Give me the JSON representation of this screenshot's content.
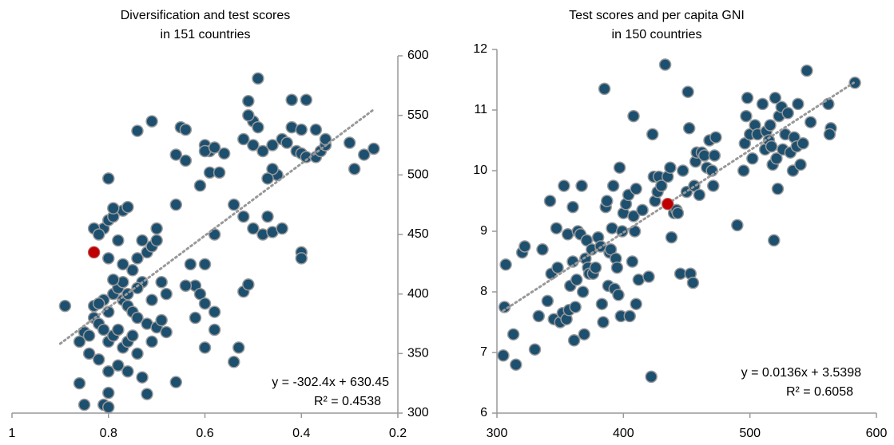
{
  "chart_data": [
    {
      "type": "scatter",
      "title": [
        "Diversification and test scores",
        "in 151 countries"
      ],
      "xlim": [
        1,
        0.2
      ],
      "xticks": [
        1,
        0.8,
        0.6,
        0.4,
        0.2
      ],
      "ylim": [
        300,
        600
      ],
      "yticks": [
        300,
        350,
        400,
        450,
        500,
        550,
        600
      ],
      "y_axis_side": "right",
      "series": [
        {
          "color": "#1d4f6f",
          "x": [
            0.89,
            0.85,
            0.84,
            0.83,
            0.82,
            0.81,
            0.8,
            0.79,
            0.78,
            0.77,
            0.76,
            0.75,
            0.74,
            0.82,
            0.8,
            0.78,
            0.76,
            0.73,
            0.86,
            0.85,
            0.81,
            0.8,
            0.8,
            0.72,
            0.66,
            0.83,
            0.81,
            0.79,
            0.78,
            0.77,
            0.76,
            0.75,
            0.74,
            0.72,
            0.7,
            0.69,
            0.68,
            0.71,
            0.75,
            0.77,
            0.74,
            0.72,
            0.71,
            0.73,
            0.7,
            0.69,
            0.68,
            0.78,
            0.8,
            0.81,
            0.83,
            0.82,
            0.8,
            0.79,
            0.77,
            0.79,
            0.76,
            0.8,
            0.74,
            0.71,
            0.65,
            0.66,
            0.64,
            0.64,
            0.6,
            0.59,
            0.59,
            0.57,
            0.61,
            0.58,
            0.6,
            0.63,
            0.62,
            0.64,
            0.61,
            0.6,
            0.58,
            0.62,
            0.58,
            0.6,
            0.54,
            0.53,
            0.52,
            0.51,
            0.54,
            0.52,
            0.5,
            0.48,
            0.47,
            0.46,
            0.44,
            0.45,
            0.46,
            0.47,
            0.48,
            0.5,
            0.52,
            0.5,
            0.49,
            0.51,
            0.51,
            0.49,
            0.46,
            0.44,
            0.43,
            0.42,
            0.41,
            0.4,
            0.39,
            0.37,
            0.36,
            0.35,
            0.35,
            0.37,
            0.4,
            0.42,
            0.39,
            0.4,
            0.4,
            0.3,
            0.29,
            0.27,
            0.25,
            0.6,
            0.58,
            0.56,
            0.66,
            0.7,
            0.71,
            0.73,
            0.77,
            0.79,
            0.86,
            0.84,
            0.82,
            0.8,
            0.76,
            0.74
          ],
          "y": [
            390,
            368,
            365,
            380,
            375,
            370,
            360,
            365,
            370,
            355,
            360,
            365,
            350,
            345,
            335,
            340,
            335,
            330,
            325,
            307,
            307,
            305,
            317,
            316,
            326,
            390,
            395,
            400,
            405,
            395,
            390,
            385,
            380,
            375,
            372,
            378,
            368,
            360,
            420,
            425,
            430,
            435,
            440,
            445,
            445,
            410,
            400,
            445,
            430,
            455,
            455,
            450,
            462,
            465,
            470,
            472,
            473,
            497,
            537,
            545,
            540,
            517,
            512,
            538,
            525,
            520,
            502,
            502,
            491,
            450,
            425,
            425,
            407,
            407,
            400,
            392,
            385,
            380,
            370,
            355,
            343,
            355,
            402,
            408,
            475,
            465,
            455,
            450,
            465,
            452,
            455,
            500,
            505,
            497,
            520,
            525,
            530,
            545,
            540,
            550,
            562,
            581,
            525,
            530,
            527,
            540,
            520,
            518,
            515,
            515,
            520,
            525,
            530,
            538,
            538,
            563,
            563,
            435,
            430,
            527,
            505,
            517,
            522,
            520,
            523,
            518,
            475,
            455,
            395,
            410,
            410,
            412,
            360,
            350,
            392,
            385,
            400,
            405
          ]
        },
        {
          "color": "#c00000",
          "x": [
            0.83
          ],
          "y": [
            435
          ]
        }
      ],
      "trendline": {
        "x": [
          0.9,
          0.25
        ],
        "y": [
          358.3,
          554.9
        ],
        "color": "#999999"
      },
      "annotation": [
        "y = -302.4x + 630.45",
        "R² = 0.4538"
      ]
    },
    {
      "type": "scatter",
      "title": [
        "Test scores and per capita GNI",
        "in 150 countries"
      ],
      "xlim": [
        300,
        600
      ],
      "xticks": [
        300,
        400,
        500,
        600
      ],
      "ylim": [
        6,
        12
      ],
      "yticks": [
        6,
        7,
        8,
        9,
        10,
        11,
        12
      ],
      "y_axis_side": "left",
      "series": [
        {
          "color": "#1d4f6f",
          "x": [
            305,
            307,
            306,
            313,
            315,
            320,
            322,
            330,
            333,
            336,
            340,
            342,
            343,
            345,
            347,
            348,
            350,
            352,
            353,
            355,
            356,
            357,
            358,
            360,
            360,
            361,
            362,
            363,
            364,
            366,
            367,
            368,
            369,
            370,
            371,
            372,
            373,
            375,
            376,
            378,
            380,
            382,
            383,
            384,
            385,
            386,
            387,
            388,
            389,
            390,
            391,
            392,
            393,
            394,
            395,
            396,
            397,
            398,
            399,
            400,
            402,
            404,
            405,
            407,
            408,
            408,
            409,
            410,
            410,
            412,
            415,
            420,
            422,
            423,
            424,
            425,
            427,
            428,
            430,
            433,
            435,
            437,
            438,
            440,
            442,
            443,
            445,
            447,
            450,
            451,
            452,
            453,
            455,
            456,
            457,
            458,
            460,
            462,
            464,
            466,
            468,
            470,
            471,
            472,
            473,
            490,
            495,
            496,
            497,
            498,
            500,
            502,
            504,
            506,
            510,
            512,
            513,
            515,
            516,
            517,
            518,
            519,
            520,
            521,
            522,
            523,
            525,
            526,
            528,
            530,
            532,
            534,
            535,
            537,
            538,
            540,
            542,
            545,
            548,
            562,
            564,
            563,
            583
          ],
          "y": [
            6.95,
            8.45,
            7.75,
            7.3,
            6.8,
            8.65,
            8.75,
            7.05,
            7.6,
            8.7,
            7.85,
            9.5,
            8.3,
            7.55,
            9.05,
            8.4,
            7.5,
            7.65,
            9.75,
            7.55,
            8.95,
            7.7,
            8.1,
            9.4,
            8.5,
            7.2,
            7.75,
            8.2,
            9.0,
            8.95,
            9.75,
            8.0,
            7.3,
            8.55,
            8.85,
            8.4,
            8.3,
            8.7,
            8.3,
            8.4,
            8.9,
            8.75,
            7.8,
            7.5,
            11.35,
            9.4,
            9.5,
            8.1,
            8.65,
            8.7,
            9.05,
            9.75,
            8.05,
            8.55,
            8.4,
            7.95,
            10.05,
            7.6,
            9.0,
            9.3,
            9.45,
            9.6,
            7.6,
            8.5,
            9.25,
            10.9,
            9.0,
            9.7,
            7.8,
            8.2,
            9.35,
            8.25,
            6.6,
            10.6,
            9.9,
            9.5,
            9.65,
            9.9,
            9.75,
            11.75,
            9.9,
            10.05,
            8.9,
            9.3,
            9.35,
            9.3,
            8.3,
            10.0,
            9.65,
            11.3,
            10.7,
            8.3,
            8.15,
            9.75,
            10.15,
            10.3,
            9.6,
            10.3,
            10.25,
            10.05,
            10.5,
            10.0,
            9.75,
            10.25,
            10.55,
            9.1,
            10.0,
            10.45,
            10.9,
            11.2,
            10.6,
            10.2,
            10.75,
            10.6,
            11.1,
            10.35,
            10.65,
            10.5,
            10.75,
            10.4,
            10.1,
            8.85,
            11.2,
            10.2,
            9.7,
            10.9,
            11.05,
            10.35,
            10.6,
            10.95,
            10.3,
            10.0,
            10.55,
            10.4,
            11.1,
            10.1,
            10.45,
            11.65,
            10.8,
            11.1,
            10.7,
            10.6,
            11.45
          ]
        },
        {
          "color": "#c00000",
          "x": [
            435
          ],
          "y": [
            9.45
          ]
        }
      ],
      "trendline": {
        "x": [
          305,
          582
        ],
        "y": [
          7.69,
          11.45
        ],
        "color": "#999999"
      },
      "annotation": [
        "y = 0.0136x + 3.5398",
        "R² = 0.6058"
      ]
    }
  ]
}
